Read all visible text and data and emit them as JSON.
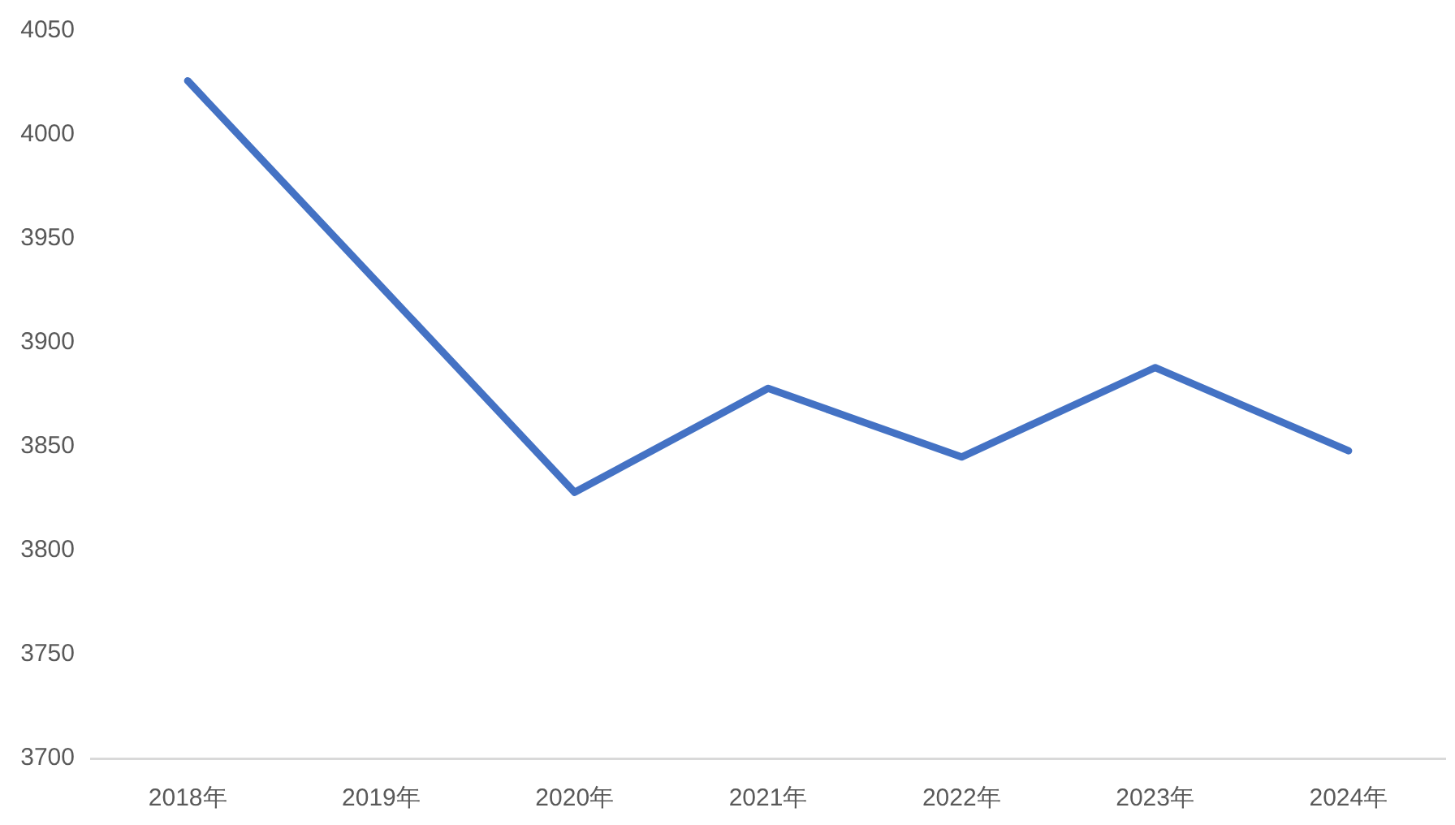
{
  "chart_data": {
    "type": "line",
    "categories": [
      "2018年",
      "2019年",
      "2020年",
      "2021年",
      "2022年",
      "2023年",
      "2024年"
    ],
    "series": [
      {
        "color": "#4472c4",
        "values": [
          4026,
          3927,
          3828,
          3878,
          3845,
          3888,
          3848
        ]
      }
    ],
    "ylim": [
      3700,
      4050
    ],
    "yticks": [
      3700,
      3750,
      3800,
      3850,
      3900,
      3950,
      4000,
      4050
    ],
    "grid": false,
    "legend": false,
    "marker": "none"
  }
}
